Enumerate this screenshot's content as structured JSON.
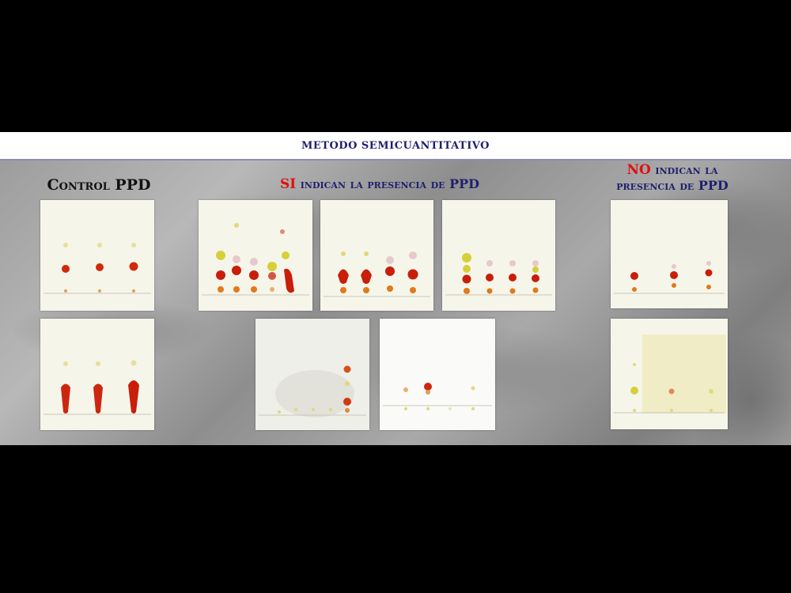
{
  "banner": {
    "title": "METODO SEMICUANTITATIVO"
  },
  "headings": {
    "control": "Control PPD",
    "si_emphasis": "SI",
    "si_rest": " indican la presencia de PPD",
    "no_emphasis": "NO",
    "no_rest": " indican la presencia de PPD"
  },
  "colors": {
    "banner_text": "#1f1f6e",
    "emphasis": "#e01010",
    "spot_red": "#c81e0a",
    "spot_orange": "#e07a1a",
    "spot_yellow": "#d8d23a"
  },
  "plates": [
    {
      "id": "control-1",
      "lanes": 3,
      "group": "control"
    },
    {
      "id": "control-2",
      "lanes": 3,
      "group": "control"
    },
    {
      "id": "si-1",
      "lanes": 5,
      "group": "si"
    },
    {
      "id": "si-2",
      "lanes": 4,
      "group": "si"
    },
    {
      "id": "si-3",
      "lanes": 4,
      "group": "si"
    },
    {
      "id": "si-4",
      "lanes": 6,
      "group": "si"
    },
    {
      "id": "si-5",
      "lanes": 4,
      "group": "si"
    },
    {
      "id": "no-1",
      "lanes": 3,
      "group": "no"
    },
    {
      "id": "no-2",
      "lanes": 3,
      "group": "no"
    }
  ]
}
